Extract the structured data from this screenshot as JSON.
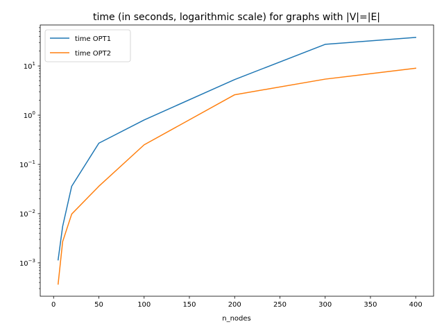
{
  "chart_data": {
    "type": "line",
    "title": "time (in seconds, logarithmic scale) for graphs with |V|=|E|",
    "xlabel": "n_nodes",
    "ylabel": "",
    "xscale": "linear",
    "yscale": "log",
    "xlim": [
      -14.75,
      419.75
    ],
    "ylim": [
      0.00021,
      68
    ],
    "xticks": [
      0,
      50,
      100,
      150,
      200,
      250,
      300,
      350,
      400
    ],
    "yticks": [
      0.001,
      0.01,
      0.1,
      1,
      10
    ],
    "ytick_labels": [
      {
        "base": "10",
        "exp": "−3"
      },
      {
        "base": "10",
        "exp": "−2"
      },
      {
        "base": "10",
        "exp": "−1"
      },
      {
        "base": "10",
        "exp": "0"
      },
      {
        "base": "10",
        "exp": "1"
      }
    ],
    "grid": false,
    "legend_position": "upper-left",
    "x": [
      5,
      10,
      20,
      50,
      100,
      200,
      300,
      400
    ],
    "series": [
      {
        "name": "time OPT1",
        "color": "#1f77b4",
        "values": [
          0.00115,
          0.0055,
          0.036,
          0.27,
          0.8,
          5.3,
          27.5,
          38
        ]
      },
      {
        "name": "time OPT2",
        "color": "#ff7f0e",
        "values": [
          0.00037,
          0.0027,
          0.0098,
          0.036,
          0.25,
          2.6,
          5.4,
          9.0
        ]
      }
    ]
  }
}
